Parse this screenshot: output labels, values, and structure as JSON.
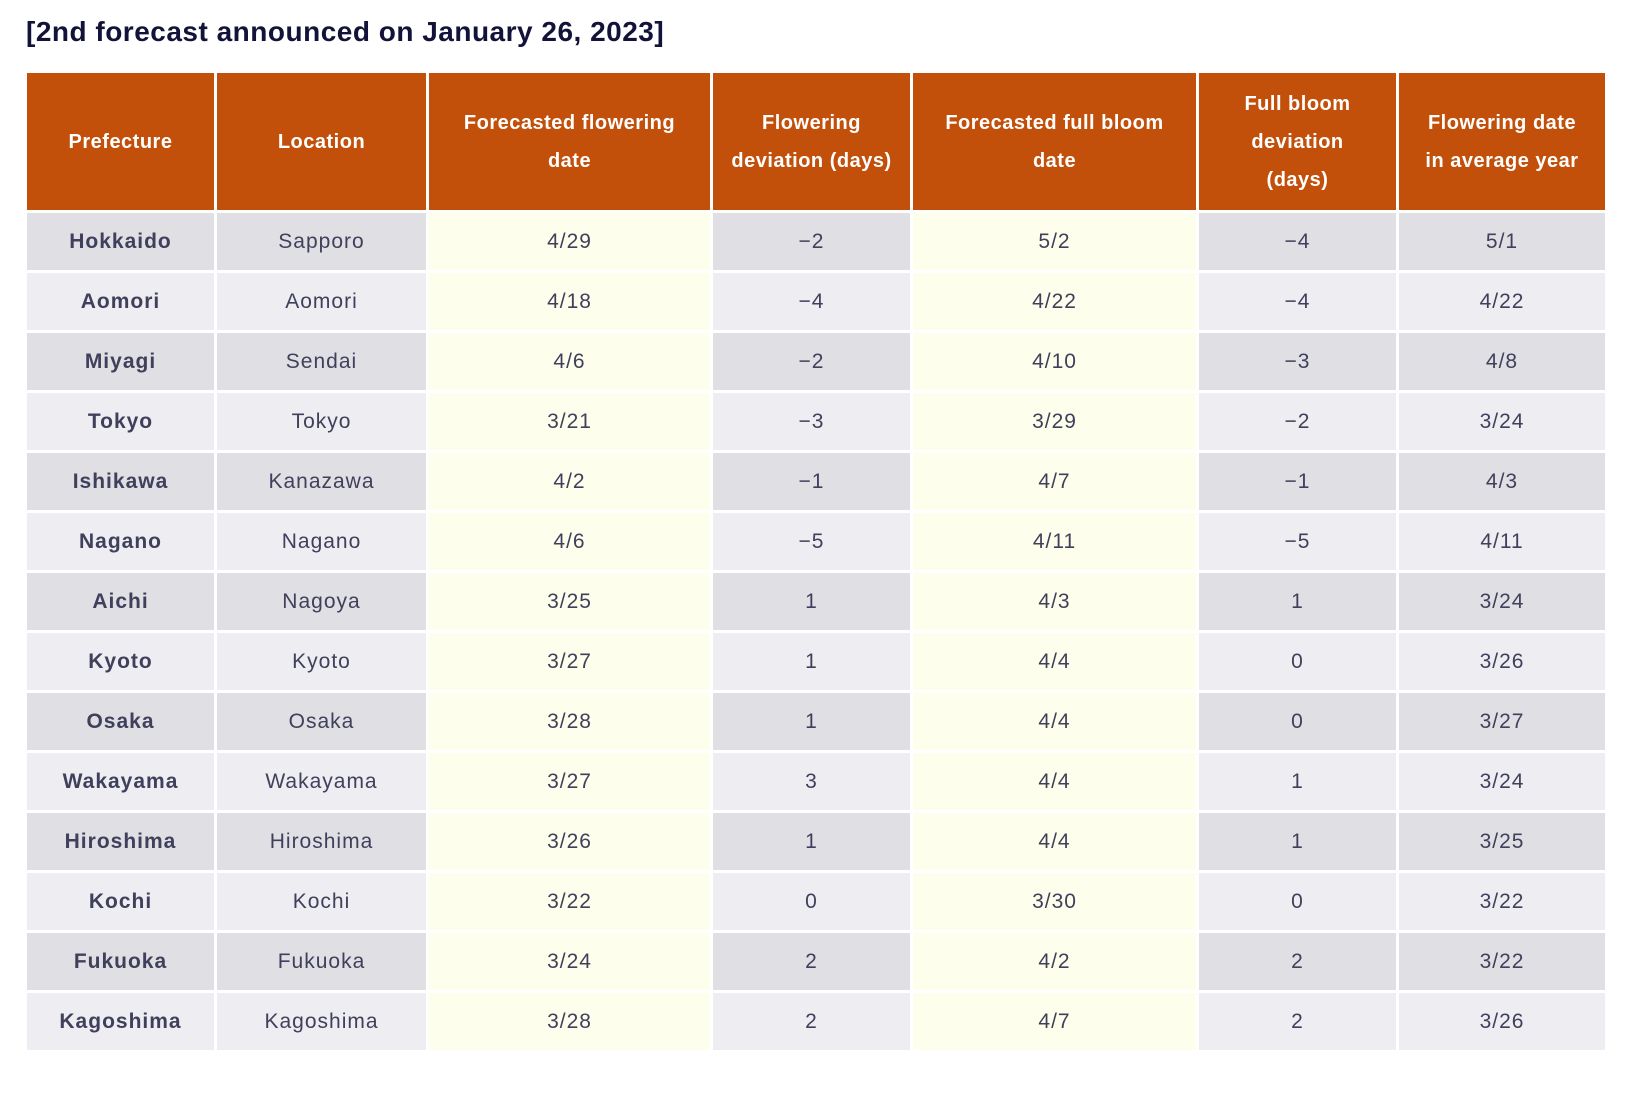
{
  "title": "[2nd forecast announced on January 26, 2023]",
  "colors": {
    "header_background": "#c2500a",
    "header_text": "#ffffff",
    "row_dark": "#dfdfe4",
    "row_light": "#ededf2",
    "forecast_column_highlight": "#fefeec",
    "cell_text": "#40405c",
    "title_text": "#13133a"
  },
  "table": {
    "columns": [
      "Prefecture",
      "Location",
      "Forecasted flowering\ndate",
      "Flowering\ndeviation (days)",
      "Forecasted full bloom\ndate",
      "Full bloom\ndeviation\n(days)",
      "Flowering date\nin average year"
    ],
    "rows": [
      [
        "Hokkaido",
        "Sapporo",
        "4/29",
        "−2",
        "5/2",
        "−4",
        "5/1"
      ],
      [
        "Aomori",
        "Aomori",
        "4/18",
        "−4",
        "4/22",
        "−4",
        "4/22"
      ],
      [
        "Miyagi",
        "Sendai",
        "4/6",
        "−2",
        "4/10",
        "−3",
        "4/8"
      ],
      [
        "Tokyo",
        "Tokyo",
        "3/21",
        "−3",
        "3/29",
        "−2",
        "3/24"
      ],
      [
        "Ishikawa",
        "Kanazawa",
        "4/2",
        "−1",
        "4/7",
        "−1",
        "4/3"
      ],
      [
        "Nagano",
        "Nagano",
        "4/6",
        "−5",
        "4/11",
        "−5",
        "4/11"
      ],
      [
        "Aichi",
        "Nagoya",
        "3/25",
        "1",
        "4/3",
        "1",
        "3/24"
      ],
      [
        "Kyoto",
        "Kyoto",
        "3/27",
        "1",
        "4/4",
        "0",
        "3/26"
      ],
      [
        "Osaka",
        "Osaka",
        "3/28",
        "1",
        "4/4",
        "0",
        "3/27"
      ],
      [
        "Wakayama",
        "Wakayama",
        "3/27",
        "3",
        "4/4",
        "1",
        "3/24"
      ],
      [
        "Hiroshima",
        "Hiroshima",
        "3/26",
        "1",
        "4/4",
        "1",
        "3/25"
      ],
      [
        "Kochi",
        "Kochi",
        "3/22",
        "0",
        "3/30",
        "0",
        "3/22"
      ],
      [
        "Fukuoka",
        "Fukuoka",
        "3/24",
        "2",
        "4/2",
        "2",
        "3/22"
      ],
      [
        "Kagoshima",
        "Kagoshima",
        "3/28",
        "2",
        "4/7",
        "2",
        "3/26"
      ]
    ]
  }
}
